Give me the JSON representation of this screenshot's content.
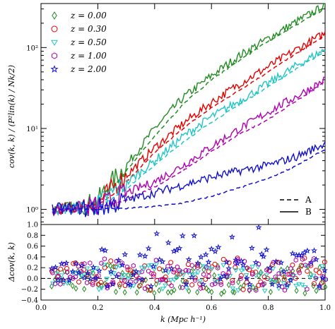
{
  "chart_data": [
    {
      "type": "line",
      "panel": "top",
      "yscale": "log",
      "ylim": [
        0.65,
        350
      ],
      "xlim": [
        0.0,
        1.0
      ],
      "ylabel": "cov(k, k) / (P²lin(k) / Nk/2)",
      "y_tick_labels": [
        "10⁰",
        "10¹",
        "10²"
      ],
      "y_tick_values": [
        1,
        10,
        100
      ],
      "legend_redshift": {
        "placement": "top-left",
        "entries": [
          {
            "label": "z = 0.00",
            "marker": "diamond",
            "color": "#228B22"
          },
          {
            "label": "z = 0.30",
            "marker": "circle",
            "color": "#e60000"
          },
          {
            "label": "z = 0.50",
            "marker": "triangle-down",
            "color": "#22c5c5"
          },
          {
            "label": "z = 1.00",
            "marker": "hexagon",
            "color": "#b000b0"
          },
          {
            "label": "z = 2.00",
            "marker": "star",
            "color": "#1010cc"
          }
        ]
      },
      "legend_style": {
        "placement": "bottom-right",
        "entries": [
          {
            "label": "A",
            "linestyle": "dashed"
          },
          {
            "label": "B",
            "linestyle": "solid"
          }
        ]
      },
      "x": [
        0.04,
        0.1,
        0.15,
        0.2,
        0.25,
        0.3,
        0.4,
        0.5,
        0.6,
        0.7,
        0.8,
        0.9,
        1.0
      ],
      "series": [
        {
          "name": "z = 0.00",
          "color": "#228B22",
          "A": [
            1.0,
            1.02,
            1.05,
            1.2,
            1.8,
            3.0,
            8.0,
            20.0,
            40.0,
            70.0,
            120.0,
            190.0,
            320.0
          ],
          "B": [
            1.0,
            1.05,
            1.1,
            1.3,
            2.2,
            3.5,
            10.0,
            24.0,
            45.0,
            80.0,
            130.0,
            210.0,
            330.0
          ]
        },
        {
          "name": "z = 0.30",
          "color": "#e60000",
          "A": [
            1.0,
            1.02,
            1.04,
            1.15,
            1.5,
            2.2,
            5.0,
            10.0,
            18.0,
            30.0,
            50.0,
            85.0,
            140.0
          ],
          "B": [
            1.0,
            1.04,
            1.08,
            1.2,
            1.8,
            2.6,
            5.8,
            11.5,
            21.0,
            36.0,
            58.0,
            95.0,
            150.0
          ]
        },
        {
          "name": "z = 0.50",
          "color": "#22c5c5",
          "A": [
            1.0,
            1.02,
            1.03,
            1.1,
            1.35,
            1.8,
            3.5,
            6.8,
            12.0,
            20.0,
            33.0,
            55.0,
            90.0
          ],
          "B": [
            1.0,
            1.04,
            1.07,
            1.15,
            1.6,
            2.1,
            4.0,
            8.0,
            14.0,
            22.0,
            36.0,
            60.0,
            95.0
          ]
        },
        {
          "name": "z = 1.00",
          "color": "#b000b0",
          "A": [
            1.0,
            1.01,
            1.02,
            1.05,
            1.15,
            1.3,
            1.9,
            3.0,
            5.2,
            8.5,
            13.0,
            22.0,
            38.0
          ],
          "B": [
            1.0,
            1.03,
            1.05,
            1.1,
            1.3,
            1.6,
            2.2,
            3.5,
            6.0,
            10.0,
            16.0,
            25.0,
            40.0
          ]
        },
        {
          "name": "z = 2.00",
          "color": "#1010cc",
          "A": [
            1.0,
            1.0,
            1.0,
            1.0,
            1.02,
            1.03,
            1.08,
            1.2,
            1.45,
            1.85,
            2.4,
            3.5,
            5.5
          ],
          "B": [
            1.0,
            1.02,
            1.03,
            1.05,
            1.15,
            1.3,
            1.6,
            2.0,
            2.5,
            3.0,
            3.5,
            4.5,
            6.5
          ]
        }
      ]
    },
    {
      "type": "scatter",
      "panel": "bottom",
      "ylabel": "Δcov(k, k)",
      "xlabel": "k (Mpc h⁻¹)",
      "xlim": [
        0.0,
        1.0
      ],
      "ylim": [
        -0.4,
        1.0
      ],
      "x_tick_labels": [
        "0.0",
        "0.2",
        "0.4",
        "0.6",
        "0.8",
        "1.0"
      ],
      "x_tick_values": [
        0.0,
        0.2,
        0.4,
        0.6,
        0.8,
        1.0
      ],
      "y_tick_labels": [
        "1.0",
        "0.8",
        "0.6",
        "0.4",
        "0.2",
        "0.0",
        "−0.2",
        "−0.4"
      ],
      "y_tick_values": [
        1.0,
        0.8,
        0.6,
        0.4,
        0.2,
        0.0,
        -0.2,
        -0.4
      ],
      "series": [
        {
          "name": "z = 0.00",
          "marker": "diamond",
          "spread": 0.28,
          "mean": -0.02
        },
        {
          "name": "z = 0.30",
          "marker": "circle",
          "spread": 0.3,
          "mean": 0.08
        },
        {
          "name": "z = 0.50",
          "marker": "triangle-down",
          "spread": 0.25,
          "mean": 0.02
        },
        {
          "name": "z = 1.00",
          "marker": "hexagon",
          "spread": 0.3,
          "mean": 0.08
        },
        {
          "name": "z = 2.00",
          "marker": "star",
          "spread": 0.35,
          "mean": 0.2
        }
      ]
    }
  ]
}
